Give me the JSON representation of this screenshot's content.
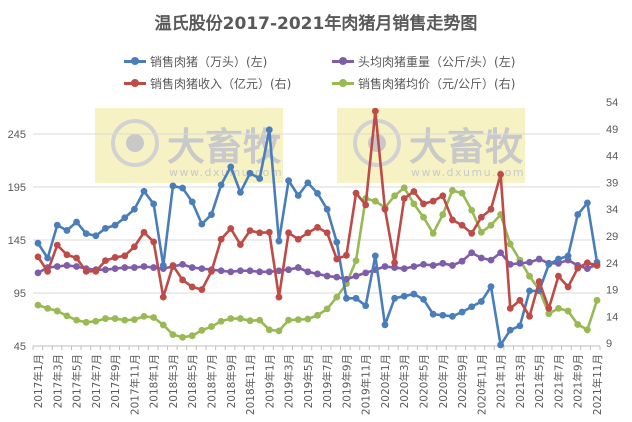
{
  "title": "温氏股份2017-2021年肉猪月销售走势图",
  "legend": [
    {
      "label": "销售肉猪（万头）(左)",
      "color": "#4A7EBB"
    },
    {
      "label": "头均肉猪重量（公斤/头）(左)",
      "color": "#7E5EA8"
    },
    {
      "label": "销售肉猪收入（亿元）(右)",
      "color": "#BE4B48"
    },
    {
      "label": "销售肉猪均价（元/公斤）(右)",
      "color": "#98B954"
    }
  ],
  "watermark": {
    "brand": "大畜牧",
    "url": "www.dxumu.com"
  },
  "chart_data": {
    "type": "line",
    "title": "温氏股份2017-2021年肉猪月销售走势图",
    "x": [
      "2017年1月",
      "2017年2月",
      "2017年3月",
      "2017年4月",
      "2017年5月",
      "2017年6月",
      "2017年7月",
      "2017年8月",
      "2017年9月",
      "2017年10月",
      "2017年11月",
      "2017年12月",
      "2018年1月",
      "2018年2月",
      "2018年3月",
      "2018年4月",
      "2018年5月",
      "2018年6月",
      "2018年7月",
      "2018年8月",
      "2018年9月",
      "2018年10月",
      "2018年11月",
      "2018年12月",
      "2019年1月",
      "2019年2月",
      "2019年3月",
      "2019年4月",
      "2019年5月",
      "2019年6月",
      "2019年7月",
      "2019年8月",
      "2019年9月",
      "2019年10月",
      "2019年11月",
      "2019年12月",
      "2020年1月",
      "2020年2月",
      "2020年3月",
      "2020年4月",
      "2020年5月",
      "2020年6月",
      "2020年7月",
      "2020年8月",
      "2020年9月",
      "2020年10月",
      "2020年11月",
      "2020年12月",
      "2021年1月",
      "2021年2月",
      "2021年3月",
      "2021年4月",
      "2021年5月",
      "2021年6月",
      "2021年7月",
      "2021年8月",
      "2021年9月",
      "2021年10月",
      "2021年11月"
    ],
    "xtick_labels": [
      "2017年1月",
      "2017年3月",
      "2017年5月",
      "2017年7月",
      "2017年9月",
      "2017年11月",
      "2018年1月",
      "2018年3月",
      "2018年5月",
      "2018年7月",
      "2018年9月",
      "2018年11月",
      "2019年1月",
      "2019年3月",
      "2019年5月",
      "2019年7月",
      "2019年9月",
      "2019年11月",
      "2020年1月",
      "2020年3月",
      "2020年5月",
      "2020年7月",
      "2020年9月",
      "2020年11月",
      "2021年1月",
      "2021年3月",
      "2021年5月",
      "2021年7月",
      "2021年9月",
      "2021年11月"
    ],
    "y_left": {
      "ticks": [
        45,
        95,
        145,
        195,
        245
      ],
      "range": [
        45,
        265
      ]
    },
    "y_right": {
      "ticks": [
        9,
        14,
        19,
        24,
        29,
        34,
        39,
        44,
        49,
        54
      ],
      "range": [
        9,
        54
      ]
    },
    "grid": true,
    "legend_position": "top",
    "series": [
      {
        "name": "销售肉猪（万头）(左)",
        "axis": "left",
        "color": "#4A7EBB",
        "values": [
          142,
          128,
          159,
          154,
          162,
          151,
          149,
          156,
          159,
          166,
          174,
          191,
          179,
          121,
          196,
          194,
          181,
          160,
          169,
          197,
          214,
          190,
          208,
          203,
          249,
          144,
          201,
          187,
          199,
          189,
          174,
          143,
          90,
          90,
          83,
          130,
          65,
          90,
          92,
          94,
          89,
          75,
          74,
          73,
          77,
          82,
          87,
          101,
          46,
          60,
          64,
          97,
          97,
          122,
          127,
          130,
          169,
          180,
          124
        ]
      },
      {
        "name": "头均肉猪重量（公斤/头）(左)",
        "axis": "left",
        "color": "#7E5EA8",
        "values": [
          114,
          119,
          120,
          121,
          120,
          118,
          117,
          117,
          118,
          119,
          119,
          120,
          119,
          118,
          120,
          122,
          119,
          118,
          117,
          116,
          115,
          116,
          116,
          115,
          115,
          116,
          117,
          119,
          115,
          113,
          111,
          110,
          108,
          111,
          114,
          117,
          120,
          119,
          118,
          120,
          122,
          121,
          123,
          121,
          125,
          133,
          128,
          126,
          133,
          122,
          123,
          124,
          127,
          123,
          123,
          126,
          121,
          118,
          122
        ]
      },
      {
        "name": "销售肉猪收入（亿元）(右)",
        "axis": "right",
        "color": "#BE4B48",
        "values": [
          25.1,
          22.4,
          27.3,
          25.5,
          24.9,
          22.4,
          22.4,
          24.4,
          25.0,
          25.3,
          27.0,
          29.7,
          27.9,
          17.6,
          23.5,
          20.8,
          19.5,
          19.0,
          22.4,
          28.4,
          30.4,
          27.4,
          30.0,
          29.6,
          29.7,
          17.6,
          29.6,
          28.4,
          29.6,
          30.6,
          29.6,
          24.7,
          25.4,
          37.0,
          34.8,
          52.3,
          34.0,
          24.0,
          36.0,
          37.3,
          35.0,
          35.5,
          36.5,
          32.0,
          31.0,
          29.5,
          32.5,
          34.0,
          40.5,
          15.5,
          17.0,
          14.0,
          20.5,
          15.5,
          21.5,
          19.5,
          23.0,
          24.0,
          23.5
        ]
      },
      {
        "name": "销售肉猪均价（元/公斤）(右)",
        "axis": "right",
        "color": "#98B954",
        "values": [
          16.1,
          15.5,
          15.0,
          14.1,
          13.3,
          12.9,
          13.1,
          13.6,
          13.6,
          13.3,
          13.4,
          14.0,
          13.8,
          12.4,
          10.6,
          10.1,
          10.4,
          11.4,
          12.1,
          13.1,
          13.6,
          13.6,
          13.2,
          13.3,
          11.5,
          11.3,
          13.3,
          13.4,
          13.5,
          14.2,
          15.4,
          17.6,
          20.1,
          24.4,
          36.0,
          35.5,
          34.3,
          36.5,
          38.0,
          35.0,
          32.5,
          29.5,
          33.0,
          37.5,
          37.0,
          33.8,
          29.7,
          31.0,
          33.0,
          27.5,
          24.5,
          21.5,
          19.0,
          14.5,
          15.5,
          15.0,
          12.5,
          11.5,
          17.0
        ]
      }
    ]
  }
}
